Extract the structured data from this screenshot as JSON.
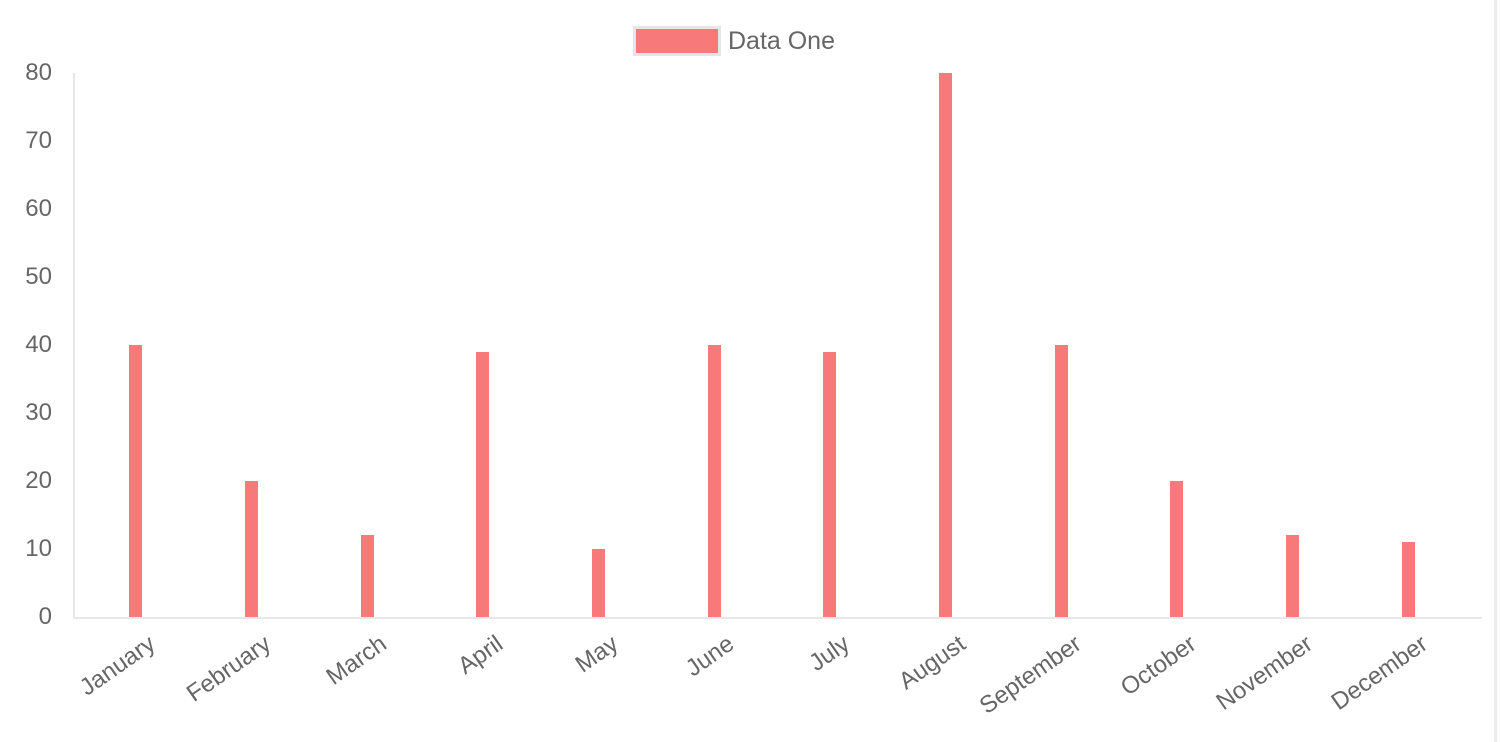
{
  "legend": {
    "items": [
      {
        "label": "Data One",
        "color": "#f87979"
      }
    ]
  },
  "chart_data": {
    "type": "bar",
    "title": "",
    "xlabel": "",
    "ylabel": "",
    "categories": [
      "January",
      "February",
      "March",
      "April",
      "May",
      "June",
      "July",
      "August",
      "September",
      "October",
      "November",
      "December"
    ],
    "series": [
      {
        "name": "Data One",
        "color": "#f87979",
        "values": [
          40,
          20,
          12,
          39,
          10,
          40,
          39,
          80,
          40,
          20,
          12,
          11
        ]
      }
    ],
    "ylim": [
      0,
      80
    ],
    "yticks": [
      0,
      10,
      20,
      30,
      40,
      50,
      60,
      70,
      80
    ],
    "grid": "off",
    "legend_position": "top-center",
    "colors": {
      "bar": "#f87979",
      "axis_line": "#e8e8e8",
      "tick_text": "#666666",
      "legend_swatch_border": "#e6e6e6"
    }
  }
}
